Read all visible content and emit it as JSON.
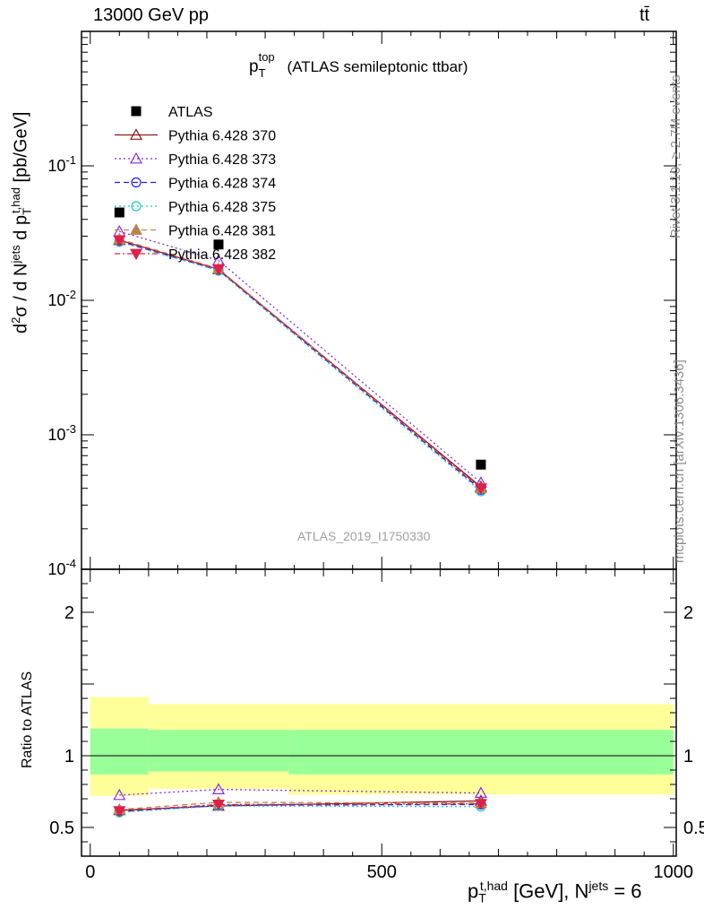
{
  "header": {
    "energy_label": "13000 GeV pp",
    "process_label": "tt̄"
  },
  "side_labels": {
    "rivet": "Rivet 3.1.10, ≥ 2.7M events",
    "mcplots": "mcplots.cern.ch [arXiv:1306.3436]"
  },
  "chart_data": {
    "type": "line",
    "title": "p_T^top (ATLAS semileptonic ttbar)",
    "analysis_id": "ATLAS_2019_I1750330",
    "xlabel": "p_T^{t,had} [GeV], N^{jets} = 6",
    "ylabel": "d²σ / d N^jets d p_T^{t,had} [pb/GeV]",
    "ratio_ylabel": "Ratio to ATLAS",
    "xlim": [
      -15,
      1005
    ],
    "ylim": [
      0.0001,
      1
    ],
    "yscale": "log",
    "ratio_ylim": [
      0.3,
      2.3
    ],
    "x_ticks": [
      0,
      500,
      1000
    ],
    "ratio_ticks": [
      0.5,
      1,
      2
    ],
    "legend_position": "top-left",
    "bins": [
      [
        0,
        100
      ],
      [
        100,
        340
      ],
      [
        340,
        1000
      ]
    ],
    "x": [
      50,
      220,
      670
    ],
    "data": {
      "name": "ATLAS",
      "values": [
        0.045,
        0.026,
        0.0006
      ],
      "stat_band": [
        [
          0.87,
          1.19
        ],
        [
          0.89,
          1.18
        ],
        [
          0.87,
          1.18
        ]
      ],
      "total_band": [
        [
          0.72,
          1.41
        ],
        [
          0.77,
          1.36
        ],
        [
          0.73,
          1.36
        ]
      ]
    },
    "series": [
      {
        "name": "Pythia 6.428 370",
        "color": "#8b1a1a",
        "dash": "",
        "marker": "triangle-open",
        "values": [
          0.028,
          0.017,
          0.00041
        ],
        "ratio": [
          0.62,
          0.65,
          0.685
        ]
      },
      {
        "name": "Pythia 6.428 373",
        "color": "#8b2be2",
        "dash": "2,3",
        "marker": "triangle-open",
        "values": [
          0.0325,
          0.0198,
          0.00044
        ],
        "ratio": [
          0.725,
          0.765,
          0.74
        ]
      },
      {
        "name": "Pythia 6.428 374",
        "color": "#2020e0",
        "dash": "6,4",
        "marker": "circle-open",
        "values": [
          0.0275,
          0.0168,
          0.00039
        ],
        "ratio": [
          0.61,
          0.655,
          0.66
        ]
      },
      {
        "name": "Pythia 6.428 375",
        "color": "#20c8c8",
        "dash": "2,3",
        "marker": "circle-open",
        "values": [
          0.0272,
          0.0166,
          0.00038
        ],
        "ratio": [
          0.605,
          0.65,
          0.645
        ]
      },
      {
        "name": "Pythia 6.428 381",
        "color": "#b8864b",
        "dash": "6,4",
        "marker": "triangle-filled",
        "values": [
          0.0285,
          0.0172,
          0.0004
        ],
        "ratio": [
          0.625,
          0.675,
          0.67
        ]
      },
      {
        "name": "Pythia 6.428 382",
        "color": "#e0204a",
        "dash": "6,3,2,3",
        "marker": "triangle-down-filled",
        "values": [
          0.028,
          0.017,
          0.0004
        ],
        "ratio": [
          0.615,
          0.66,
          0.665
        ]
      }
    ]
  }
}
